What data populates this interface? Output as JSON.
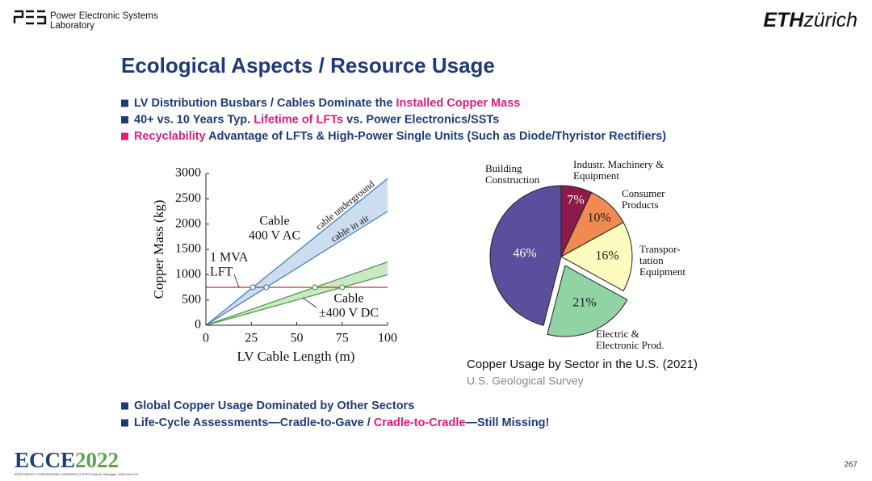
{
  "header": {
    "lab_line1": "Power Electronic Systems",
    "lab_line2": "Laboratory",
    "eth": "ETH",
    "zurich": "zürich"
  },
  "title": "Ecological Aspects / Resource Usage",
  "bullets_top": [
    {
      "marker_color": "#1f3a7a",
      "segments": [
        {
          "text": "LV Distribution Busbars / Cables Dominate the ",
          "color": "#1f3a7a"
        },
        {
          "text": "Installed Copper Mass",
          "color": "#e6197a"
        }
      ]
    },
    {
      "marker_color": "#1f3a7a",
      "segments": [
        {
          "text": "40+ vs. 10 Years Typ. ",
          "color": "#1f3a7a"
        },
        {
          "text": "Lifetime of LFTs",
          "color": "#e6197a"
        },
        {
          "text": " vs. Power Electronics/SSTs",
          "color": "#1f3a7a"
        }
      ]
    },
    {
      "marker_color": "#e6197a",
      "segments": [
        {
          "text": "Recyclability",
          "color": "#e6197a"
        },
        {
          "text": " Advantage of LFTs & High-Power Single Units (Such as Diode/Thyristor Rectifiers)",
          "color": "#1f3a7a"
        }
      ]
    }
  ],
  "bullets_bottom": [
    {
      "marker_color": "#1f3a7a",
      "segments": [
        {
          "text": "Global Copper Usage Dominated by Other Sectors",
          "color": "#1f3a7a"
        }
      ]
    },
    {
      "marker_color": "#1f3a7a",
      "segments": [
        {
          "text": "Life-Cycle Assessments—Cradle-to-Gave / ",
          "color": "#1f3a7a"
        },
        {
          "text": "Cradle-to-Cradle",
          "color": "#e6197a"
        },
        {
          "text": "—Still Missing!",
          "color": "#1f3a7a"
        }
      ]
    }
  ],
  "chart_data": [
    {
      "type": "line",
      "xlabel": "LV Cable Length (m)",
      "ylabel": "Copper Mass (kg)",
      "x": [
        0,
        100
      ],
      "xlim": [
        0,
        100
      ],
      "ylim": [
        0,
        3000
      ],
      "xticks": [
        0,
        25,
        50,
        75,
        100
      ],
      "yticks": [
        0,
        500,
        1000,
        1500,
        2000,
        2500,
        3000
      ],
      "bands": [
        {
          "label": [
            "Cable",
            "400 V AC"
          ],
          "fill": "#c6d9ee",
          "color": "#4a7fb8",
          "upper": [
            0,
            2900
          ],
          "lower": [
            0,
            2250
          ],
          "upper_label": "cable underground",
          "lower_label": "cable in air"
        },
        {
          "label": [
            "Cable",
            "±400 V DC"
          ],
          "fill": "#c8e6c0",
          "color": "#4a9e48",
          "upper": [
            0,
            1250
          ],
          "lower": [
            0,
            1000
          ]
        }
      ],
      "threshold": {
        "label": [
          "1 MVA",
          "LFT"
        ],
        "value": 750,
        "color": "#d62728"
      },
      "markers": {
        "x": [
          25.9,
          33.3,
          60,
          75
        ],
        "y": [
          750,
          750,
          750,
          750
        ],
        "colors": [
          "#4a7fb8",
          "#4a7fb8",
          "#4a9e48",
          "#4a9e48"
        ]
      }
    },
    {
      "type": "pie",
      "title": "Copper Usage by Sector in the U.S. (2021)",
      "source": "U.S. Geological Survey",
      "categories": [
        [
          "Industr. Machinery &",
          "Equipment"
        ],
        [
          "Consumer",
          "Products"
        ],
        [
          "Transpor-",
          "tation",
          "Equipment"
        ],
        [
          "Electric &",
          "Electronic Prod."
        ],
        [
          "Building",
          "Construction"
        ]
      ],
      "values": [
        7,
        10,
        16,
        21,
        46
      ],
      "value_labels": [
        "7%",
        "10%",
        "16%",
        "21%",
        "46%"
      ],
      "colors": [
        "#8c1a4b",
        "#ef8a52",
        "#fdfbbd",
        "#91d3a3",
        "#5b4f9d"
      ],
      "label_colors": [
        "#ffffff",
        "#222222",
        "#222222",
        "#222222",
        "#ffffff"
      ],
      "explode": [
        0,
        0,
        0,
        1,
        0
      ],
      "start_angle": 90,
      "direction": "clockwise"
    }
  ],
  "footer": {
    "logo": "ECCE",
    "year": "2022",
    "subline": "IEEE ENERGY CONVERSION CONGRESS & EXPO Detroit, Michigan, USA Oct 9-13",
    "page": 267
  }
}
